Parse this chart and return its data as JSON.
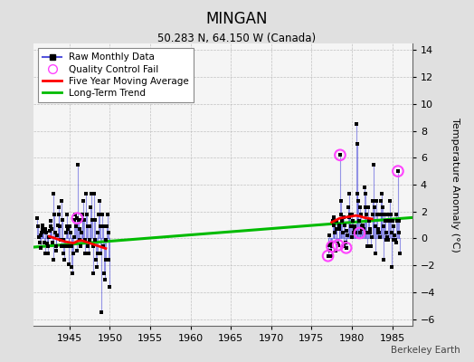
{
  "title": "MINGAN",
  "subtitle": "50.283 N, 64.150 W (Canada)",
  "ylabel": "Temperature Anomaly (°C)",
  "attribution": "Berkeley Earth",
  "xlim": [
    1940.5,
    1987.5
  ],
  "ylim": [
    -6.5,
    14.5
  ],
  "yticks": [
    -6,
    -4,
    -2,
    0,
    2,
    4,
    6,
    8,
    10,
    12,
    14
  ],
  "xticks": [
    1945,
    1950,
    1955,
    1960,
    1965,
    1970,
    1975,
    1980,
    1985
  ],
  "bg_color": "#e0e0e0",
  "plot_bg_color": "#f5f5f5",
  "raw_line_color": "#5555dd",
  "raw_line_alpha": 0.6,
  "raw_dot_color": "#000000",
  "qc_color": "#ff44ff",
  "moving_avg_color": "red",
  "trend_color": "#00bb00",
  "raw_monthly": [
    [
      1941.04,
      1.5
    ],
    [
      1941.13,
      0.9
    ],
    [
      1941.21,
      0.1
    ],
    [
      1941.29,
      -0.3
    ],
    [
      1941.38,
      -0.7
    ],
    [
      1941.46,
      0.2
    ],
    [
      1941.54,
      0.4
    ],
    [
      1941.63,
      0.7
    ],
    [
      1941.71,
      1.0
    ],
    [
      1941.79,
      0.5
    ],
    [
      1941.88,
      -0.3
    ],
    [
      1941.96,
      -1.1
    ],
    [
      1942.04,
      0.7
    ],
    [
      1942.13,
      0.4
    ],
    [
      1942.21,
      -0.4
    ],
    [
      1942.29,
      -1.1
    ],
    [
      1942.38,
      -0.6
    ],
    [
      1942.46,
      0.1
    ],
    [
      1942.54,
      0.6
    ],
    [
      1942.63,
      0.9
    ],
    [
      1942.71,
      1.3
    ],
    [
      1942.79,
      0.7
    ],
    [
      1942.88,
      -0.3
    ],
    [
      1942.96,
      -1.6
    ],
    [
      1943.04,
      3.3
    ],
    [
      1943.13,
      1.8
    ],
    [
      1943.21,
      0.4
    ],
    [
      1943.29,
      -0.6
    ],
    [
      1943.38,
      -0.9
    ],
    [
      1943.46,
      0.2
    ],
    [
      1943.54,
      1.0
    ],
    [
      1943.63,
      1.8
    ],
    [
      1943.71,
      2.3
    ],
    [
      1943.79,
      0.9
    ],
    [
      1943.88,
      -0.1
    ],
    [
      1943.96,
      -0.6
    ],
    [
      1944.04,
      2.8
    ],
    [
      1944.13,
      1.4
    ],
    [
      1944.21,
      -0.1
    ],
    [
      1944.29,
      -1.1
    ],
    [
      1944.38,
      -1.6
    ],
    [
      1944.46,
      -0.6
    ],
    [
      1944.54,
      0.4
    ],
    [
      1944.63,
      0.9
    ],
    [
      1944.71,
      1.8
    ],
    [
      1944.79,
      0.7
    ],
    [
      1944.88,
      -0.6
    ],
    [
      1944.96,
      -1.9
    ],
    [
      1945.04,
      0.9
    ],
    [
      1945.13,
      0.4
    ],
    [
      1945.21,
      -0.6
    ],
    [
      1945.29,
      -2.1
    ],
    [
      1945.38,
      -2.6
    ],
    [
      1945.46,
      -1.1
    ],
    [
      1945.54,
      0.1
    ],
    [
      1945.63,
      1.4
    ],
    [
      1945.71,
      1.8
    ],
    [
      1945.79,
      0.9
    ],
    [
      1945.88,
      -0.9
    ],
    [
      1945.96,
      1.5
    ],
    [
      1946.04,
      5.5
    ],
    [
      1946.13,
      1.4
    ],
    [
      1946.21,
      0.7
    ],
    [
      1946.29,
      -0.1
    ],
    [
      1946.38,
      -0.6
    ],
    [
      1946.46,
      0.4
    ],
    [
      1946.54,
      1.4
    ],
    [
      1946.63,
      1.8
    ],
    [
      1946.71,
      2.8
    ],
    [
      1946.79,
      1.4
    ],
    [
      1946.88,
      -0.1
    ],
    [
      1946.96,
      -1.1
    ],
    [
      1947.04,
      3.3
    ],
    [
      1947.13,
      1.8
    ],
    [
      1947.21,
      0.9
    ],
    [
      1947.29,
      -0.6
    ],
    [
      1947.38,
      -1.1
    ],
    [
      1947.46,
      -0.1
    ],
    [
      1947.54,
      0.9
    ],
    [
      1947.63,
      2.3
    ],
    [
      1947.71,
      3.3
    ],
    [
      1947.79,
      1.4
    ],
    [
      1947.88,
      -0.6
    ],
    [
      1947.96,
      -2.6
    ],
    [
      1948.04,
      3.3
    ],
    [
      1948.13,
      1.4
    ],
    [
      1948.21,
      -0.1
    ],
    [
      1948.29,
      -1.6
    ],
    [
      1948.38,
      -2.1
    ],
    [
      1948.46,
      -1.1
    ],
    [
      1948.54,
      0.4
    ],
    [
      1948.63,
      1.8
    ],
    [
      1948.71,
      2.8
    ],
    [
      1948.79,
      0.9
    ],
    [
      1948.88,
      -1.1
    ],
    [
      1948.96,
      -5.5
    ],
    [
      1949.04,
      1.8
    ],
    [
      1949.13,
      0.9
    ],
    [
      1949.21,
      -0.6
    ],
    [
      1949.29,
      -2.6
    ],
    [
      1949.38,
      -3.1
    ],
    [
      1949.46,
      -1.6
    ],
    [
      1949.54,
      -0.1
    ],
    [
      1949.63,
      0.9
    ],
    [
      1949.71,
      1.8
    ],
    [
      1949.79,
      0.4
    ],
    [
      1949.88,
      -1.6
    ],
    [
      1949.96,
      -3.6
    ],
    [
      1977.04,
      -1.3
    ],
    [
      1977.13,
      -0.5
    ],
    [
      1977.21,
      0.2
    ],
    [
      1977.29,
      -0.9
    ],
    [
      1977.38,
      -1.3
    ],
    [
      1977.46,
      -0.4
    ],
    [
      1977.54,
      -0.6
    ],
    [
      1977.63,
      1.3
    ],
    [
      1977.71,
      1.6
    ],
    [
      1977.79,
      1.0
    ],
    [
      1977.88,
      0.4
    ],
    [
      1977.96,
      -0.9
    ],
    [
      1978.04,
      1.3
    ],
    [
      1978.13,
      0.7
    ],
    [
      1978.21,
      -0.4
    ],
    [
      1978.29,
      -0.5
    ],
    [
      1978.38,
      1.0
    ],
    [
      1978.46,
      0.7
    ],
    [
      1978.54,
      6.2
    ],
    [
      1978.63,
      1.8
    ],
    [
      1978.71,
      2.8
    ],
    [
      1978.79,
      1.3
    ],
    [
      1978.88,
      0.4
    ],
    [
      1978.96,
      -0.6
    ],
    [
      1979.04,
      1.6
    ],
    [
      1979.13,
      1.0
    ],
    [
      1979.21,
      -0.3
    ],
    [
      1979.29,
      -0.7
    ],
    [
      1979.38,
      0.6
    ],
    [
      1979.46,
      0.2
    ],
    [
      1979.54,
      2.3
    ],
    [
      1979.63,
      1.6
    ],
    [
      1979.71,
      3.3
    ],
    [
      1979.79,
      1.8
    ],
    [
      1979.88,
      0.9
    ],
    [
      1979.96,
      0.1
    ],
    [
      1980.04,
      1.8
    ],
    [
      1980.13,
      1.3
    ],
    [
      1980.21,
      0.4
    ],
    [
      1980.29,
      0.7
    ],
    [
      1980.38,
      0.9
    ],
    [
      1980.46,
      0.4
    ],
    [
      1980.54,
      8.5
    ],
    [
      1980.63,
      3.3
    ],
    [
      1980.71,
      7.0
    ],
    [
      1980.79,
      2.8
    ],
    [
      1980.88,
      1.3
    ],
    [
      1980.96,
      0.4
    ],
    [
      1981.04,
      2.3
    ],
    [
      1981.13,
      1.8
    ],
    [
      1981.21,
      0.7
    ],
    [
      1981.29,
      0.9
    ],
    [
      1981.38,
      1.0
    ],
    [
      1981.46,
      0.7
    ],
    [
      1981.54,
      3.8
    ],
    [
      1981.63,
      2.3
    ],
    [
      1981.71,
      3.3
    ],
    [
      1981.79,
      1.8
    ],
    [
      1981.88,
      0.4
    ],
    [
      1981.96,
      -0.6
    ],
    [
      1982.04,
      2.3
    ],
    [
      1982.13,
      1.3
    ],
    [
      1982.21,
      0.4
    ],
    [
      1982.29,
      0.7
    ],
    [
      1982.38,
      -0.6
    ],
    [
      1982.46,
      0.1
    ],
    [
      1982.54,
      2.8
    ],
    [
      1982.63,
      1.8
    ],
    [
      1982.71,
      5.5
    ],
    [
      1982.79,
      2.3
    ],
    [
      1982.88,
      0.9
    ],
    [
      1982.96,
      -1.1
    ],
    [
      1983.04,
      2.8
    ],
    [
      1983.13,
      1.8
    ],
    [
      1983.21,
      0.4
    ],
    [
      1983.29,
      0.7
    ],
    [
      1983.38,
      0.4
    ],
    [
      1983.46,
      0.1
    ],
    [
      1983.54,
      2.8
    ],
    [
      1983.63,
      1.8
    ],
    [
      1983.71,
      3.3
    ],
    [
      1983.79,
      2.3
    ],
    [
      1983.88,
      0.9
    ],
    [
      1983.96,
      -1.6
    ],
    [
      1984.04,
      1.8
    ],
    [
      1984.13,
      1.3
    ],
    [
      1984.21,
      -0.1
    ],
    [
      1984.29,
      0.4
    ],
    [
      1984.38,
      0.1
    ],
    [
      1984.46,
      -0.1
    ],
    [
      1984.54,
      1.8
    ],
    [
      1984.63,
      1.3
    ],
    [
      1984.71,
      2.8
    ],
    [
      1984.79,
      1.8
    ],
    [
      1984.88,
      0.4
    ],
    [
      1984.96,
      -2.1
    ],
    [
      1985.04,
      1.3
    ],
    [
      1985.13,
      0.9
    ],
    [
      1985.21,
      -0.1
    ],
    [
      1985.29,
      0.2
    ],
    [
      1985.38,
      -0.1
    ],
    [
      1985.46,
      -0.3
    ],
    [
      1985.54,
      1.8
    ],
    [
      1985.63,
      1.3
    ],
    [
      1985.71,
      5.0
    ],
    [
      1985.79,
      1.3
    ],
    [
      1985.88,
      0.4
    ],
    [
      1985.96,
      -1.1
    ]
  ],
  "qc_fails": [
    [
      1945.96,
      1.5
    ],
    [
      1977.54,
      -0.6
    ],
    [
      1977.04,
      -1.3
    ],
    [
      1978.29,
      -0.5
    ],
    [
      1978.54,
      6.2
    ],
    [
      1979.29,
      -0.7
    ],
    [
      1980.96,
      0.4
    ],
    [
      1985.71,
      5.0
    ]
  ],
  "moving_avg_seg1": [
    [
      1942.5,
      0.15
    ],
    [
      1943.0,
      0.05
    ],
    [
      1943.5,
      -0.05
    ],
    [
      1944.0,
      -0.15
    ],
    [
      1944.5,
      -0.25
    ],
    [
      1945.0,
      -0.3
    ],
    [
      1945.5,
      -0.35
    ],
    [
      1946.0,
      -0.2
    ],
    [
      1946.5,
      -0.15
    ],
    [
      1947.0,
      -0.25
    ],
    [
      1947.5,
      -0.35
    ],
    [
      1948.0,
      -0.45
    ],
    [
      1948.5,
      -0.55
    ],
    [
      1949.0,
      -0.65
    ],
    [
      1949.5,
      -0.75
    ]
  ],
  "moving_avg_seg2": [
    [
      1977.5,
      1.2
    ],
    [
      1978.0,
      1.35
    ],
    [
      1978.5,
      1.5
    ],
    [
      1979.0,
      1.55
    ],
    [
      1979.5,
      1.6
    ],
    [
      1980.0,
      1.65
    ],
    [
      1980.5,
      1.7
    ],
    [
      1981.0,
      1.65
    ],
    [
      1981.5,
      1.55
    ],
    [
      1982.0,
      1.5
    ],
    [
      1982.5,
      1.45
    ]
  ],
  "trend_x": [
    1940.5,
    1987.5
  ],
  "trend_y": [
    -0.65,
    1.55
  ]
}
